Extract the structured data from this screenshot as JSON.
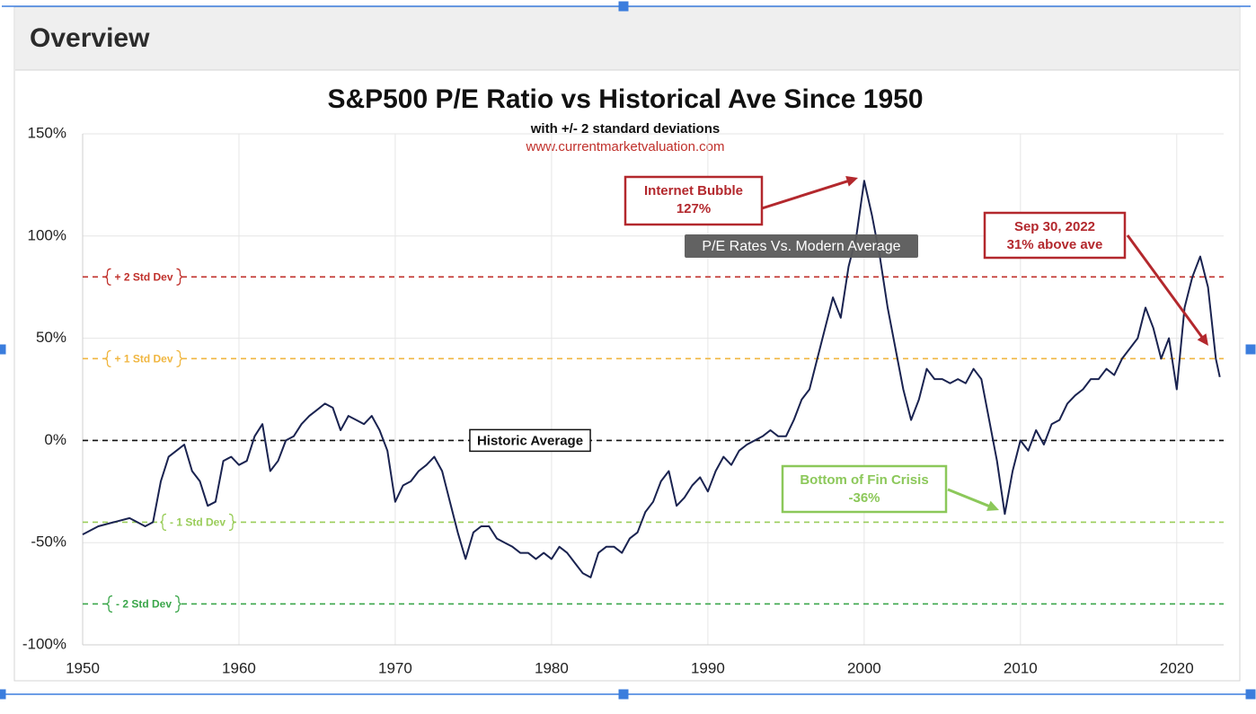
{
  "header": {
    "title": "Overview"
  },
  "chart_data": {
    "type": "line",
    "title": "S&P500 P/E Ratio vs Historical Ave Since 1950",
    "subtitle": "with +/- 2 standard deviations",
    "source": "www.currentmarketvaluation.com",
    "xlim": [
      1950,
      2023
    ],
    "xticks": [
      1950,
      1960,
      1970,
      1980,
      1990,
      2000,
      2010,
      2020
    ],
    "ylim": [
      -100,
      150
    ],
    "yticks": [
      {
        "value": -100,
        "label": "-100%"
      },
      {
        "value": -50,
        "label": "-50%"
      },
      {
        "value": 0,
        "label": "0%"
      },
      {
        "value": 50,
        "label": "50%"
      },
      {
        "value": 100,
        "label": "100%"
      },
      {
        "value": 150,
        "label": "150%"
      }
    ],
    "grid": true,
    "series": [
      {
        "name": "P/E Rates Vs. Modern Average",
        "color": "#1a2350",
        "x": [
          1950,
          1951,
          1952,
          1953,
          1954,
          1954.5,
          1955,
          1955.5,
          1956,
          1956.5,
          1957,
          1957.5,
          1958,
          1958.5,
          1959,
          1959.5,
          1960,
          1960.5,
          1961,
          1961.5,
          1962,
          1962.5,
          1963,
          1963.5,
          1964,
          1964.5,
          1965,
          1965.5,
          1966,
          1966.5,
          1967,
          1967.5,
          1968,
          1968.5,
          1969,
          1969.5,
          1970,
          1970.5,
          1971,
          1971.5,
          1972,
          1972.5,
          1973,
          1973.5,
          1974,
          1974.5,
          1975,
          1975.5,
          1976,
          1976.5,
          1977,
          1977.5,
          1978,
          1978.5,
          1979,
          1979.5,
          1980,
          1980.5,
          1981,
          1981.5,
          1982,
          1982.5,
          1983,
          1983.5,
          1984,
          1984.5,
          1985,
          1985.5,
          1986,
          1986.5,
          1987,
          1987.5,
          1988,
          1988.5,
          1989,
          1989.5,
          1990,
          1990.5,
          1991,
          1991.5,
          1992,
          1992.5,
          1993,
          1993.5,
          1994,
          1994.5,
          1995,
          1995.5,
          1996,
          1996.5,
          1997,
          1997.5,
          1998,
          1998.5,
          1999,
          1999.5,
          2000,
          2000.5,
          2001,
          2001.5,
          2002,
          2002.5,
          2003,
          2003.5,
          2004,
          2004.5,
          2005,
          2005.5,
          2006,
          2006.5,
          2007,
          2007.5,
          2008,
          2008.5,
          2009,
          2009.5,
          2010,
          2010.5,
          2011,
          2011.5,
          2012,
          2012.5,
          2013,
          2013.5,
          2014,
          2014.5,
          2015,
          2015.5,
          2016,
          2016.5,
          2017,
          2017.5,
          2018,
          2018.5,
          2019,
          2019.5,
          2020,
          2020.5,
          2021,
          2021.5,
          2022,
          2022.5,
          2022.75
        ],
        "values": [
          -46,
          -42,
          -40,
          -38,
          -42,
          -40,
          -20,
          -8,
          -5,
          -2,
          -15,
          -20,
          -32,
          -30,
          -10,
          -8,
          -12,
          -10,
          2,
          8,
          -15,
          -10,
          0,
          2,
          8,
          12,
          15,
          18,
          16,
          5,
          12,
          10,
          8,
          12,
          5,
          -5,
          -30,
          -22,
          -20,
          -15,
          -12,
          -8,
          -15,
          -30,
          -45,
          -58,
          -45,
          -42,
          -42,
          -48,
          -50,
          -52,
          -55,
          -55,
          -58,
          -55,
          -58,
          -52,
          -55,
          -60,
          -65,
          -67,
          -55,
          -52,
          -52,
          -55,
          -48,
          -45,
          -35,
          -30,
          -20,
          -15,
          -32,
          -28,
          -22,
          -18,
          -25,
          -15,
          -8,
          -12,
          -5,
          -2,
          0,
          2,
          5,
          2,
          2,
          10,
          20,
          25,
          40,
          55,
          70,
          60,
          85,
          100,
          127,
          110,
          90,
          65,
          45,
          25,
          10,
          20,
          35,
          30,
          30,
          28,
          30,
          28,
          35,
          30,
          10,
          -10,
          -36,
          -15,
          0,
          -5,
          5,
          -2,
          8,
          10,
          18,
          22,
          25,
          30,
          30,
          35,
          32,
          40,
          45,
          50,
          65,
          55,
          40,
          50,
          25,
          65,
          80,
          90,
          75,
          40,
          31
        ]
      }
    ],
    "reference_lines": [
      {
        "label": "+ 2 Std Dev",
        "value": 80,
        "color": "#c0302b"
      },
      {
        "label": "+ 1 Std Dev",
        "value": 40,
        "color": "#f0b640"
      },
      {
        "label": "Historic Average",
        "value": 0,
        "color": "#111111"
      },
      {
        "label": "- 1 Std Dev",
        "value": -40,
        "color": "#9acd5a"
      },
      {
        "label": "- 2 Std Dev",
        "value": -80,
        "color": "#3aa64a"
      }
    ],
    "annotations": [
      {
        "text": [
          "Internet Bubble",
          "127%"
        ],
        "color": "#b3282d"
      },
      {
        "text": [
          "Sep 30, 2022",
          "31% above ave"
        ],
        "color": "#b3282d"
      },
      {
        "text": [
          "Bottom of Fin Crisis",
          "-36%"
        ],
        "color": "#8cc85a"
      }
    ]
  }
}
